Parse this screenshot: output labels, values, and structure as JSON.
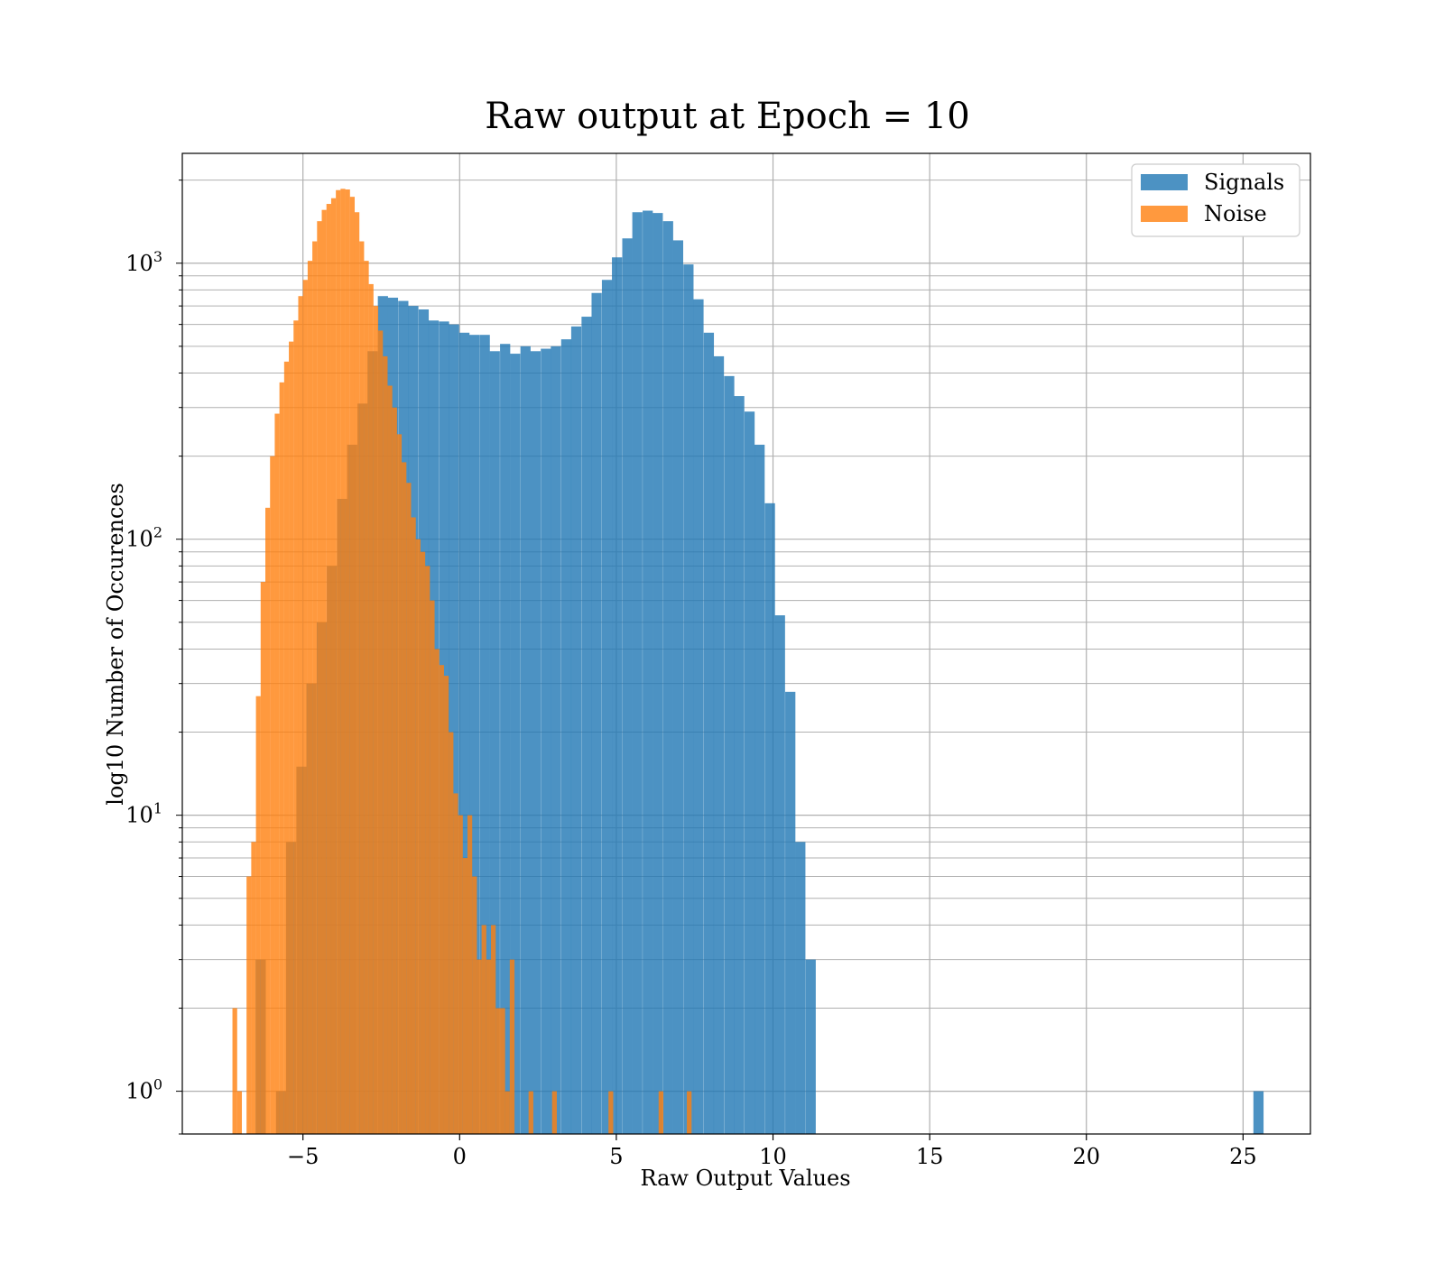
{
  "chart_data": {
    "type": "histogram",
    "title": "Raw output at Epoch = 10",
    "xlabel": "Raw Output Values",
    "ylabel": "log10 Number of Occurences",
    "xlim": [
      -8.85,
      27.15
    ],
    "ylim": [
      0.7,
      2500
    ],
    "yscale": "log",
    "grid": true,
    "legend_position": "top-right",
    "xticks": [
      {
        "value": -5,
        "label": "−5"
      },
      {
        "value": 0,
        "label": "0"
      },
      {
        "value": 5,
        "label": "5"
      },
      {
        "value": 10,
        "label": "10"
      },
      {
        "value": 15,
        "label": "15"
      },
      {
        "value": 20,
        "label": "20"
      },
      {
        "value": 25,
        "label": "25"
      }
    ],
    "yticks": [
      {
        "value": 1,
        "base": "10",
        "exp": "0"
      },
      {
        "value": 10,
        "base": "10",
        "exp": "1"
      },
      {
        "value": 100,
        "base": "10",
        "exp": "2"
      },
      {
        "value": 1000,
        "base": "10",
        "exp": "3"
      }
    ],
    "series": [
      {
        "name": "Signals",
        "color": "#1f77b4",
        "opacity": 0.8,
        "bin_width": 0.3243,
        "bins": [
          [
            -6.51,
            3
          ],
          [
            -5.86,
            1
          ],
          [
            -5.54,
            8
          ],
          [
            -5.21,
            15
          ],
          [
            -4.89,
            30
          ],
          [
            -4.56,
            50
          ],
          [
            -4.24,
            80
          ],
          [
            -3.91,
            140
          ],
          [
            -3.59,
            220
          ],
          [
            -3.26,
            310
          ],
          [
            -2.94,
            480
          ],
          [
            -2.61,
            760
          ],
          [
            -2.29,
            750
          ],
          [
            -1.96,
            730
          ],
          [
            -1.64,
            700
          ],
          [
            -1.31,
            680
          ],
          [
            -0.99,
            620
          ],
          [
            -0.66,
            615
          ],
          [
            -0.34,
            600
          ],
          [
            -0.01,
            560
          ],
          [
            0.31,
            550
          ],
          [
            0.64,
            550
          ],
          [
            0.96,
            480
          ],
          [
            1.29,
            510
          ],
          [
            1.61,
            470
          ],
          [
            1.94,
            500
          ],
          [
            2.26,
            480
          ],
          [
            2.59,
            490
          ],
          [
            2.91,
            500
          ],
          [
            3.24,
            530
          ],
          [
            3.56,
            590
          ],
          [
            3.89,
            640
          ],
          [
            4.21,
            780
          ],
          [
            4.54,
            870
          ],
          [
            4.86,
            1050
          ],
          [
            5.19,
            1230
          ],
          [
            5.51,
            1530
          ],
          [
            5.84,
            1550
          ],
          [
            6.16,
            1520
          ],
          [
            6.49,
            1420
          ],
          [
            6.81,
            1210
          ],
          [
            7.14,
            990
          ],
          [
            7.46,
            740
          ],
          [
            7.79,
            560
          ],
          [
            8.11,
            460
          ],
          [
            8.44,
            390
          ],
          [
            8.76,
            330
          ],
          [
            9.09,
            290
          ],
          [
            9.41,
            220
          ],
          [
            9.74,
            135
          ],
          [
            10.06,
            53
          ],
          [
            10.39,
            28
          ],
          [
            10.71,
            8
          ],
          [
            11.04,
            3
          ],
          [
            25.33,
            1
          ]
        ]
      },
      {
        "name": "Noise",
        "color": "#ff7f0e",
        "opacity": 0.8,
        "bin_width": 0.151,
        "bins": [
          [
            -7.25,
            2
          ],
          [
            -7.1,
            1
          ],
          [
            -6.95,
            0
          ],
          [
            -6.8,
            6
          ],
          [
            -6.65,
            8
          ],
          [
            -6.5,
            27
          ],
          [
            -6.35,
            70
          ],
          [
            -6.2,
            130
          ],
          [
            -6.05,
            200
          ],
          [
            -5.9,
            285
          ],
          [
            -5.75,
            370
          ],
          [
            -5.6,
            440
          ],
          [
            -5.45,
            520
          ],
          [
            -5.3,
            620
          ],
          [
            -5.15,
            760
          ],
          [
            -5.0,
            870
          ],
          [
            -4.85,
            1020
          ],
          [
            -4.7,
            1200
          ],
          [
            -4.55,
            1420
          ],
          [
            -4.4,
            1560
          ],
          [
            -4.25,
            1640
          ],
          [
            -4.1,
            1720
          ],
          [
            -3.95,
            1840
          ],
          [
            -3.8,
            1860
          ],
          [
            -3.65,
            1850
          ],
          [
            -3.5,
            1740
          ],
          [
            -3.35,
            1530
          ],
          [
            -3.2,
            1200
          ],
          [
            -3.05,
            1020
          ],
          [
            -2.9,
            840
          ],
          [
            -2.75,
            700
          ],
          [
            -2.6,
            570
          ],
          [
            -2.45,
            460
          ],
          [
            -2.3,
            360
          ],
          [
            -2.15,
            300
          ],
          [
            -2.0,
            240
          ],
          [
            -1.85,
            190
          ],
          [
            -1.7,
            160
          ],
          [
            -1.55,
            120
          ],
          [
            -1.4,
            100
          ],
          [
            -1.25,
            90
          ],
          [
            -1.1,
            80
          ],
          [
            -0.95,
            60
          ],
          [
            -0.8,
            40
          ],
          [
            -0.65,
            35
          ],
          [
            -0.5,
            32
          ],
          [
            -0.35,
            20
          ],
          [
            -0.2,
            12
          ],
          [
            -0.05,
            10
          ],
          [
            0.1,
            7
          ],
          [
            0.25,
            10
          ],
          [
            0.4,
            6
          ],
          [
            0.55,
            3
          ],
          [
            0.7,
            4
          ],
          [
            0.85,
            3
          ],
          [
            1.0,
            4
          ],
          [
            1.15,
            2
          ],
          [
            1.3,
            2
          ],
          [
            1.45,
            1
          ],
          [
            1.6,
            3
          ],
          [
            2.2,
            1
          ],
          [
            2.95,
            1
          ],
          [
            4.75,
            1
          ],
          [
            6.35,
            1
          ],
          [
            7.25,
            1
          ]
        ]
      }
    ]
  }
}
